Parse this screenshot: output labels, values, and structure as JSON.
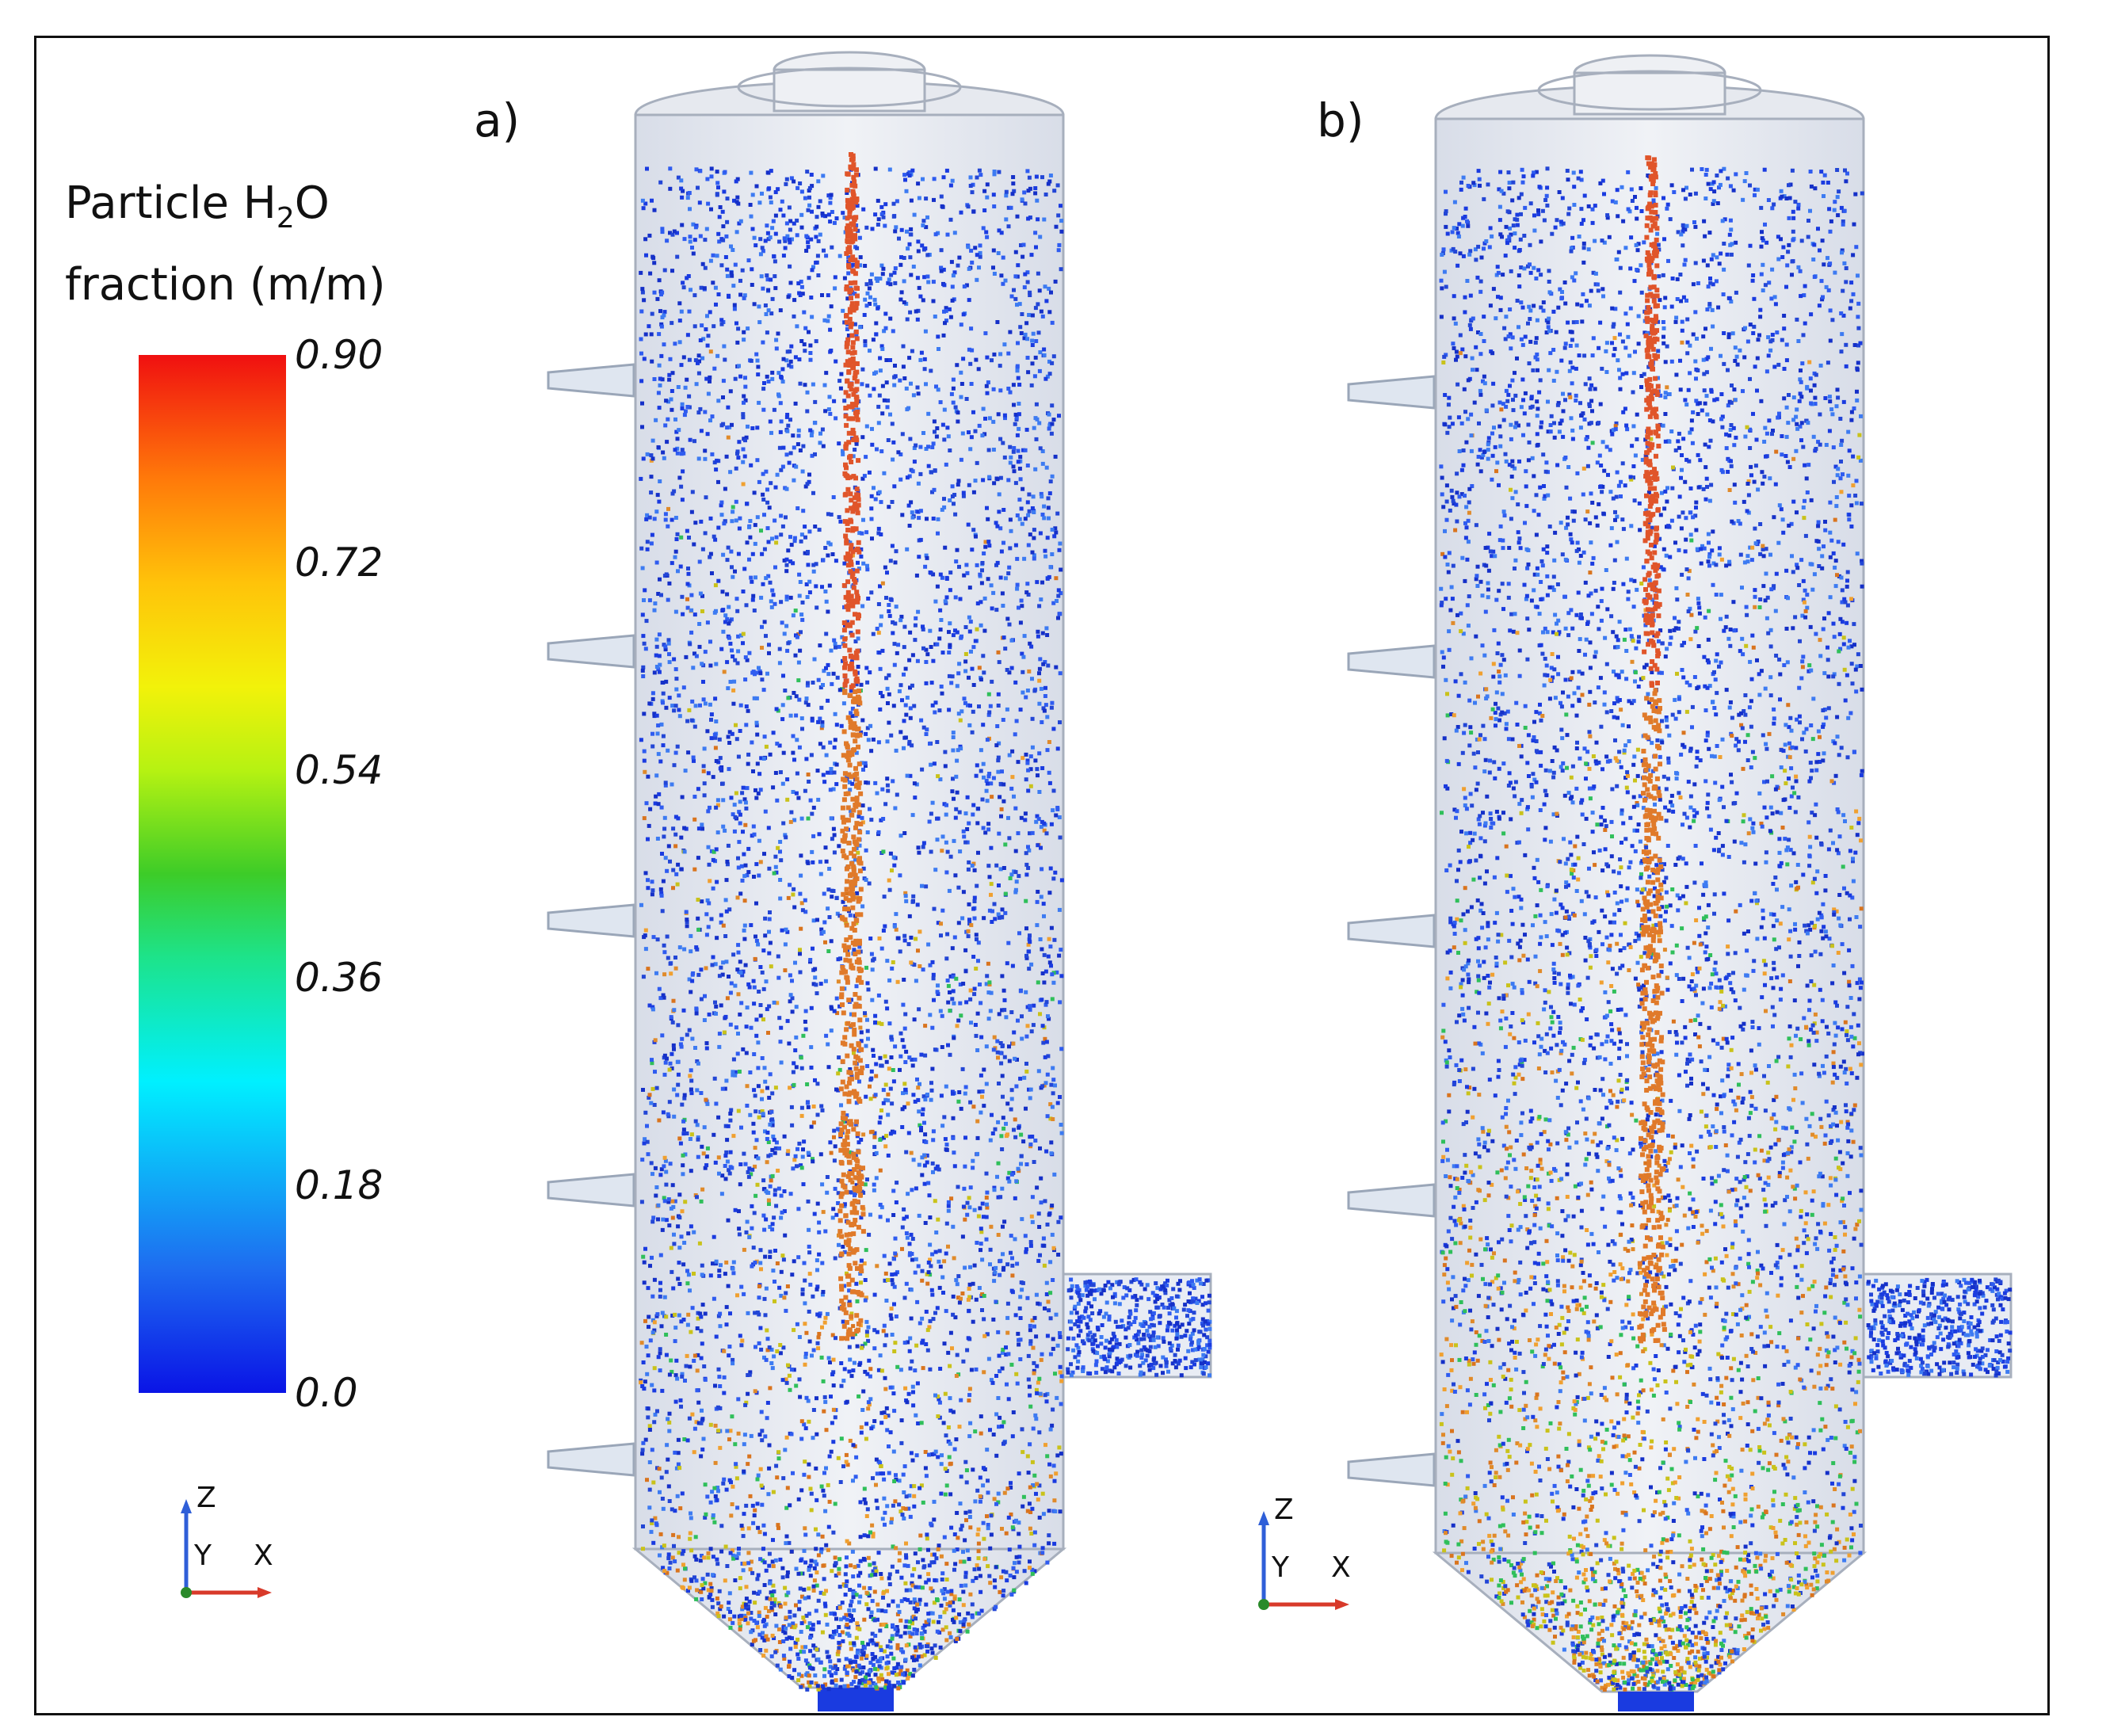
{
  "legend": {
    "title_prefix": "Particle H",
    "title_sub": "2",
    "title_suffix": "O",
    "title_line2": "fraction (m/m)",
    "ticks": [
      "0.90",
      "0.72",
      "0.54",
      "0.36",
      "0.18",
      "0.0"
    ],
    "colors": {
      "low": "#0a14e6",
      "mid": "#3dcc28",
      "high": "#f01010"
    }
  },
  "panels": [
    {
      "label": "a)",
      "orange_share": 0.22,
      "particle_color": "#1a3be0"
    },
    {
      "label": "b)",
      "orange_share": 0.45,
      "particle_color": "#1a3be0"
    }
  ],
  "triad": {
    "z": "Z",
    "y": "Y",
    "x": "X"
  }
}
